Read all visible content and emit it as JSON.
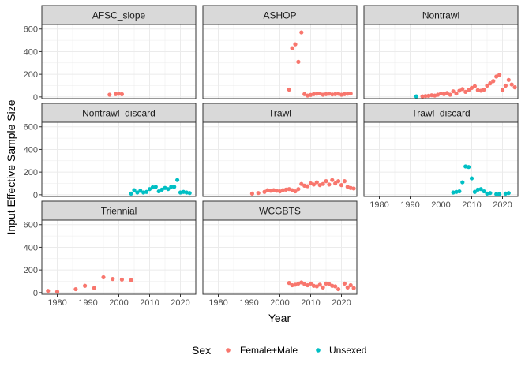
{
  "chart_data": {
    "type": "scatter",
    "facet": true,
    "xlabel": "Year",
    "ylabel": "Input Effective Sample Size",
    "xlim": [
      1975,
      2025
    ],
    "ylim": [
      -15,
      640
    ],
    "x_ticks": [
      1980,
      1990,
      2000,
      2010,
      2020
    ],
    "y_ticks": [
      0,
      200,
      400,
      600
    ],
    "grid": true,
    "legend": {
      "title": "Sex",
      "position": "bottom"
    },
    "series_styles": [
      {
        "name": "Female+Male",
        "color": "#F8766D"
      },
      {
        "name": "Unsexed",
        "color": "#00BFC4"
      }
    ],
    "panels": [
      {
        "title": "AFSC_slope",
        "series": [
          {
            "name": "Female+Male",
            "points": [
              [
                1997,
                20
              ],
              [
                1999,
                25
              ],
              [
                2000,
                28
              ],
              [
                2001,
                24
              ]
            ]
          },
          {
            "name": "Unsexed",
            "points": []
          }
        ]
      },
      {
        "title": "ASHOP",
        "series": [
          {
            "name": "Female+Male",
            "points": [
              [
                2003,
                65
              ],
              [
                2004,
                430
              ],
              [
                2005,
                465
              ],
              [
                2006,
                310
              ],
              [
                2007,
                570
              ],
              [
                2008,
                25
              ],
              [
                2009,
                12
              ],
              [
                2010,
                18
              ],
              [
                2011,
                25
              ],
              [
                2012,
                28
              ],
              [
                2013,
                30
              ],
              [
                2014,
                20
              ],
              [
                2015,
                25
              ],
              [
                2016,
                28
              ],
              [
                2017,
                22
              ],
              [
                2018,
                25
              ],
              [
                2019,
                28
              ],
              [
                2020,
                20
              ],
              [
                2021,
                25
              ],
              [
                2022,
                28
              ],
              [
                2023,
                30
              ]
            ]
          },
          {
            "name": "Unsexed",
            "points": []
          }
        ]
      },
      {
        "title": "Nontrawl",
        "series": [
          {
            "name": "Female+Male",
            "points": [
              [
                1994,
                5
              ],
              [
                1995,
                8
              ],
              [
                1996,
                10
              ],
              [
                1997,
                15
              ],
              [
                1998,
                12
              ],
              [
                1999,
                20
              ],
              [
                2000,
                30
              ],
              [
                2001,
                25
              ],
              [
                2002,
                35
              ],
              [
                2003,
                20
              ],
              [
                2004,
                50
              ],
              [
                2005,
                30
              ],
              [
                2006,
                55
              ],
              [
                2007,
                70
              ],
              [
                2008,
                45
              ],
              [
                2009,
                60
              ],
              [
                2010,
                80
              ],
              [
                2011,
                95
              ],
              [
                2012,
                60
              ],
              [
                2013,
                55
              ],
              [
                2014,
                65
              ],
              [
                2015,
                100
              ],
              [
                2016,
                120
              ],
              [
                2017,
                140
              ],
              [
                2018,
                180
              ],
              [
                2019,
                195
              ],
              [
                2020,
                60
              ],
              [
                2021,
                100
              ],
              [
                2022,
                150
              ],
              [
                2023,
                110
              ],
              [
                2024,
                85
              ]
            ]
          },
          {
            "name": "Unsexed",
            "points": [
              [
                1992,
                5
              ]
            ]
          }
        ]
      },
      {
        "title": "Nontrawl_discard",
        "series": [
          {
            "name": "Female+Male",
            "points": []
          },
          {
            "name": "Unsexed",
            "points": [
              [
                2004,
                10
              ],
              [
                2005,
                40
              ],
              [
                2006,
                20
              ],
              [
                2007,
                35
              ],
              [
                2008,
                20
              ],
              [
                2009,
                25
              ],
              [
                2010,
                50
              ],
              [
                2011,
                65
              ],
              [
                2012,
                70
              ],
              [
                2013,
                30
              ],
              [
                2014,
                45
              ],
              [
                2015,
                60
              ],
              [
                2016,
                50
              ],
              [
                2017,
                70
              ],
              [
                2018,
                70
              ],
              [
                2019,
                130
              ],
              [
                2020,
                20
              ],
              [
                2021,
                25
              ],
              [
                2022,
                20
              ],
              [
                2023,
                15
              ]
            ]
          }
        ]
      },
      {
        "title": "Trawl",
        "series": [
          {
            "name": "Female+Male",
            "points": [
              [
                1991,
                10
              ],
              [
                1993,
                15
              ],
              [
                1995,
                25
              ],
              [
                1996,
                40
              ],
              [
                1997,
                35
              ],
              [
                1998,
                40
              ],
              [
                1999,
                35
              ],
              [
                2000,
                30
              ],
              [
                2001,
                40
              ],
              [
                2002,
                45
              ],
              [
                2003,
                50
              ],
              [
                2004,
                40
              ],
              [
                2005,
                30
              ],
              [
                2006,
                50
              ],
              [
                2007,
                95
              ],
              [
                2008,
                80
              ],
              [
                2009,
                75
              ],
              [
                2010,
                100
              ],
              [
                2011,
                90
              ],
              [
                2012,
                110
              ],
              [
                2013,
                85
              ],
              [
                2014,
                95
              ],
              [
                2015,
                120
              ],
              [
                2016,
                90
              ],
              [
                2017,
                130
              ],
              [
                2018,
                100
              ],
              [
                2019,
                120
              ],
              [
                2020,
                85
              ],
              [
                2021,
                120
              ],
              [
                2022,
                70
              ],
              [
                2023,
                60
              ],
              [
                2024,
                55
              ]
            ]
          },
          {
            "name": "Unsexed",
            "points": []
          }
        ]
      },
      {
        "title": "Trawl_discard",
        "series": [
          {
            "name": "Female+Male",
            "points": []
          },
          {
            "name": "Unsexed",
            "points": [
              [
                2004,
                20
              ],
              [
                2005,
                25
              ],
              [
                2006,
                30
              ],
              [
                2007,
                110
              ],
              [
                2008,
                250
              ],
              [
                2009,
                245
              ],
              [
                2010,
                145
              ],
              [
                2011,
                25
              ],
              [
                2012,
                45
              ],
              [
                2013,
                50
              ],
              [
                2014,
                30
              ],
              [
                2015,
                10
              ],
              [
                2016,
                15
              ],
              [
                2018,
                5
              ],
              [
                2019,
                5
              ],
              [
                2021,
                10
              ],
              [
                2022,
                15
              ]
            ]
          }
        ]
      },
      {
        "title": "Triennial",
        "series": [
          {
            "name": "Female+Male",
            "points": [
              [
                1977,
                15
              ],
              [
                1980,
                8
              ],
              [
                1986,
                30
              ],
              [
                1989,
                60
              ],
              [
                1992,
                40
              ],
              [
                1995,
                135
              ],
              [
                1998,
                120
              ],
              [
                2001,
                115
              ],
              [
                2004,
                110
              ]
            ]
          },
          {
            "name": "Unsexed",
            "points": []
          }
        ]
      },
      {
        "title": "WCGBTS",
        "series": [
          {
            "name": "Female+Male",
            "points": [
              [
                2003,
                85
              ],
              [
                2004,
                65
              ],
              [
                2005,
                70
              ],
              [
                2006,
                80
              ],
              [
                2007,
                90
              ],
              [
                2008,
                75
              ],
              [
                2009,
                65
              ],
              [
                2010,
                80
              ],
              [
                2011,
                60
              ],
              [
                2012,
                55
              ],
              [
                2013,
                70
              ],
              [
                2014,
                45
              ],
              [
                2015,
                80
              ],
              [
                2016,
                75
              ],
              [
                2017,
                60
              ],
              [
                2018,
                55
              ],
              [
                2019,
                30
              ],
              [
                2021,
                80
              ],
              [
                2022,
                45
              ],
              [
                2023,
                65
              ],
              [
                2024,
                40
              ]
            ]
          },
          {
            "name": "Unsexed",
            "points": []
          }
        ]
      }
    ]
  }
}
